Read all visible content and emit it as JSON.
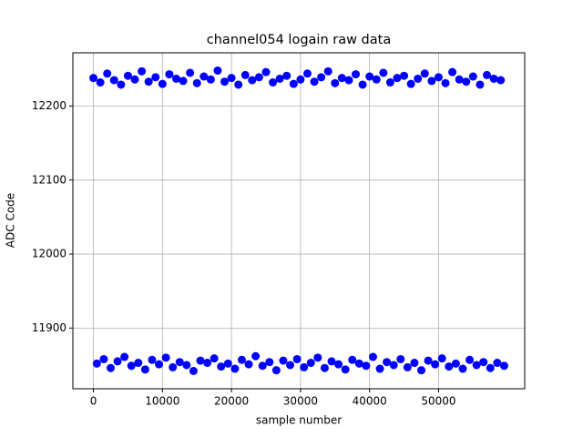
{
  "chart_data": {
    "type": "scatter",
    "title": "channel054 logain raw data",
    "x_label": "sample number",
    "y_label": "ADC Code",
    "x": [
      0,
      500,
      1000,
      1500,
      2000,
      2500,
      3000,
      3500,
      4000,
      4500,
      5000,
      5500,
      6000,
      6500,
      7000,
      7500,
      8000,
      8500,
      9000,
      9500,
      10000,
      10500,
      11000,
      11500,
      12000,
      12500,
      13000,
      13500,
      14000,
      14500,
      15000,
      15500,
      16000,
      16500,
      17000,
      17500,
      18000,
      18500,
      19000,
      19500,
      20000,
      20500,
      21000,
      21500,
      22000,
      22500,
      23000,
      23500,
      24000,
      24500,
      25000,
      25500,
      26000,
      26500,
      27000,
      27500,
      28000,
      28500,
      29000,
      29500,
      30000,
      30500,
      31000,
      31500,
      32000,
      32500,
      33000,
      33500,
      34000,
      34500,
      35000,
      35500,
      36000,
      36500,
      37000,
      37500,
      38000,
      38500,
      39000,
      39500,
      40000,
      40500,
      41000,
      41500,
      42000,
      42500,
      43000,
      43500,
      44000,
      44500,
      45000,
      45500,
      46000,
      46500,
      47000,
      47500,
      48000,
      48500,
      49000,
      49500,
      50000,
      50500,
      51000,
      51500,
      52000,
      52500,
      53000,
      53500,
      54000,
      54500,
      55000,
      55500,
      56000,
      56500,
      57000,
      57500,
      58000,
      58500,
      59000,
      59500
    ],
    "values": [
      12238,
      11852,
      12232,
      11858,
      12244,
      11846,
      12235,
      11855,
      12229,
      11861,
      12241,
      11849,
      12236,
      11853,
      12247,
      11844,
      12233,
      11857,
      12239,
      11851,
      12230,
      11860,
      12243,
      11847,
      12237,
      11854,
      12234,
      11850,
      12245,
      11842,
      12231,
      11856,
      12240,
      11853,
      12236,
      11859,
      12248,
      11848,
      12233,
      11852,
      12238,
      11845,
      12229,
      11857,
      12242,
      11851,
      12235,
      11862,
      12239,
      11849,
      12246,
      11854,
      12232,
      11843,
      12237,
      11856,
      12241,
      11850,
      12230,
      11858,
      12236,
      11847,
      12244,
      11853,
      12233,
      11860,
      12239,
      11846,
      12247,
      11855,
      12231,
      11851,
      12238,
      11844,
      12235,
      11857,
      12243,
      11852,
      12229,
      11849,
      12240,
      11861,
      12236,
      11845,
      12245,
      11854,
      12232,
      11850,
      12238,
      11858,
      12241,
      11847,
      12230,
      11853,
      12237,
      11843,
      12244,
      11856,
      12234,
      11851,
      12239,
      11859,
      12231,
      11848,
      12246,
      11852,
      12236,
      11845,
      12233,
      11857,
      12240,
      11850,
      12229,
      11854,
      12242,
      11846,
      12237,
      11853,
      12235,
      11849
    ],
    "color": "#0000ff",
    "xlim": [
      -2975,
      62475
    ],
    "ylim": [
      11818,
      12272
    ],
    "xticks": [
      0,
      10000,
      20000,
      30000,
      40000,
      50000
    ],
    "yticks": [
      11900,
      12000,
      12100,
      12200
    ],
    "grid": true
  }
}
